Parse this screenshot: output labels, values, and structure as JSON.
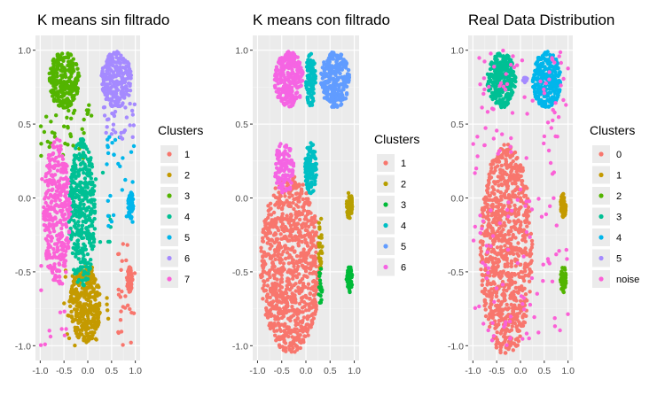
{
  "chart_data": [
    {
      "type": "scatter",
      "title": "K means sin filtrado",
      "xlabel": "",
      "ylabel": "",
      "xlim": [
        -1.1,
        1.1
      ],
      "ylim": [
        -1.1,
        1.1
      ],
      "x_ticks": [
        -1.0,
        -0.5,
        0.0,
        0.5,
        1.0
      ],
      "x_tick_labels": [
        "-1.0",
        "-0.5",
        "0.0",
        "0.5",
        "1.0"
      ],
      "y_ticks": [
        1.0,
        0.5,
        0.0,
        -0.5,
        -1.0
      ],
      "y_tick_labels": [
        "1.0",
        "0.5",
        "0.0",
        "-0.5",
        "-1.0"
      ],
      "grid": true,
      "legend_position": "right",
      "legend_title": "Clusters",
      "series": [
        {
          "name": "1",
          "color": "#F8766D",
          "blobs": [
            {
              "cx": 0.88,
              "cy": -0.55,
              "rx": 0.06,
              "ry": 0.09,
              "n": 60
            }
          ],
          "scatter": [
            {
              "x0": 0.6,
              "x1": 1.0,
              "y0": -1.0,
              "y1": -0.3,
              "n": 30
            }
          ]
        },
        {
          "name": "2",
          "color": "#C49A00",
          "blobs": [
            {
              "cx": -0.05,
              "cy": -0.72,
              "rx": 0.32,
              "ry": 0.26,
              "n": 320
            }
          ],
          "scatter": [
            {
              "x0": -0.5,
              "x1": 0.5,
              "y0": -1.0,
              "y1": -0.45,
              "n": 30
            }
          ]
        },
        {
          "name": "3",
          "color": "#53B400",
          "blobs": [
            {
              "cx": -0.5,
              "cy": 0.8,
              "rx": 0.32,
              "ry": 0.19,
              "n": 260
            }
          ],
          "scatter": [
            {
              "x0": -1.0,
              "x1": 0.1,
              "y0": 0.25,
              "y1": 0.65,
              "n": 40
            }
          ]
        },
        {
          "name": "4",
          "color": "#00C094",
          "blobs": [
            {
              "cx": -0.12,
              "cy": -0.1,
              "rx": 0.28,
              "ry": 0.5,
              "n": 360
            }
          ],
          "scatter": [
            {
              "x0": -0.4,
              "x1": 0.5,
              "y0": -0.3,
              "y1": 0.3,
              "n": 30
            }
          ]
        },
        {
          "name": "5",
          "color": "#00B6EB",
          "blobs": [
            {
              "cx": 0.9,
              "cy": -0.05,
              "rx": 0.06,
              "ry": 0.09,
              "n": 60
            }
          ],
          "scatter": [
            {
              "x0": 0.4,
              "x1": 1.0,
              "y0": -0.2,
              "y1": 0.45,
              "n": 30
            }
          ]
        },
        {
          "name": "6",
          "color": "#A58AFF",
          "blobs": [
            {
              "cx": 0.6,
              "cy": 0.8,
              "rx": 0.32,
              "ry": 0.19,
              "n": 260
            }
          ],
          "scatter": [
            {
              "x0": 0.3,
              "x1": 1.0,
              "y0": 0.4,
              "y1": 0.65,
              "n": 30
            }
          ]
        },
        {
          "name": "7",
          "color": "#FB61D7",
          "blobs": [
            {
              "cx": -0.65,
              "cy": -0.1,
              "rx": 0.28,
              "ry": 0.5,
              "n": 320
            }
          ],
          "scatter": [
            {
              "x0": -1.0,
              "x1": -0.4,
              "y0": -1.0,
              "y1": 0.3,
              "n": 30
            }
          ]
        }
      ]
    },
    {
      "type": "scatter",
      "title": "K means con filtrado",
      "xlabel": "",
      "ylabel": "",
      "xlim": [
        -1.1,
        1.1
      ],
      "ylim": [
        -1.1,
        1.1
      ],
      "x_ticks": [
        -1.0,
        -0.5,
        0.0,
        0.5,
        1.0
      ],
      "x_tick_labels": [
        "-1.0",
        "-0.5",
        "0.0",
        "0.5",
        "1.0"
      ],
      "y_ticks": [
        1.0,
        0.5,
        0.0,
        -0.5,
        -1.0
      ],
      "y_tick_labels": [
        "1.0",
        "0.5",
        "0.0",
        "-0.5",
        "-1.0"
      ],
      "grid": true,
      "legend_position": "right",
      "legend_title": "Clusters",
      "series": [
        {
          "name": "1",
          "color": "#F8766D",
          "blobs": [
            {
              "cx": -0.32,
              "cy": -0.45,
              "rx": 0.62,
              "ry": 0.6,
              "n": 900
            }
          ],
          "scatter": []
        },
        {
          "name": "2",
          "color": "#B79F00",
          "blobs": [
            {
              "cx": 0.9,
              "cy": -0.05,
              "rx": 0.06,
              "ry": 0.09,
              "n": 60
            },
            {
              "cx": 0.3,
              "cy": -0.3,
              "rx": 0.04,
              "ry": 0.2,
              "n": 30
            }
          ],
          "scatter": []
        },
        {
          "name": "3",
          "color": "#00BA38",
          "blobs": [
            {
              "cx": 0.9,
              "cy": -0.55,
              "rx": 0.06,
              "ry": 0.09,
              "n": 60
            },
            {
              "cx": 0.3,
              "cy": -0.6,
              "rx": 0.04,
              "ry": 0.15,
              "n": 20
            }
          ],
          "scatter": []
        },
        {
          "name": "4",
          "color": "#00BFC4",
          "blobs": [
            {
              "cx": 0.1,
              "cy": 0.8,
              "rx": 0.1,
              "ry": 0.18,
              "n": 120
            },
            {
              "cx": 0.1,
              "cy": 0.2,
              "rx": 0.12,
              "ry": 0.18,
              "n": 120
            }
          ],
          "scatter": []
        },
        {
          "name": "5",
          "color": "#619CFF",
          "blobs": [
            {
              "cx": 0.6,
              "cy": 0.8,
              "rx": 0.3,
              "ry": 0.19,
              "n": 260
            }
          ],
          "scatter": []
        },
        {
          "name": "6",
          "color": "#F564E3",
          "blobs": [
            {
              "cx": -0.35,
              "cy": 0.8,
              "rx": 0.3,
              "ry": 0.19,
              "n": 260
            },
            {
              "cx": -0.45,
              "cy": 0.2,
              "rx": 0.2,
              "ry": 0.18,
              "n": 120
            }
          ],
          "scatter": []
        }
      ]
    },
    {
      "type": "scatter",
      "title": "Real Data Distribution",
      "xlabel": "",
      "ylabel": "",
      "xlim": [
        -1.1,
        1.1
      ],
      "ylim": [
        -1.1,
        1.1
      ],
      "x_ticks": [
        -1.0,
        -0.5,
        0.0,
        0.5,
        1.0
      ],
      "x_tick_labels": [
        "-1.0",
        "-0.5",
        "0.0",
        "0.5",
        "1.0"
      ],
      "y_ticks": [
        1.0,
        0.5,
        0.0,
        -0.5,
        -1.0
      ],
      "y_tick_labels": [
        "1.0",
        "0.5",
        "0.0",
        "-0.5",
        "-1.0"
      ],
      "grid": true,
      "legend_position": "right",
      "legend_title": "Clusters",
      "series": [
        {
          "name": "0",
          "color": "#F8766D",
          "blobs": [
            {
              "cx": -0.3,
              "cy": -0.35,
              "rx": 0.55,
              "ry": 0.72,
              "n": 900
            }
          ],
          "scatter": []
        },
        {
          "name": "1",
          "color": "#C49A00",
          "blobs": [
            {
              "cx": 0.9,
              "cy": -0.05,
              "rx": 0.06,
              "ry": 0.09,
              "n": 60
            }
          ],
          "scatter": []
        },
        {
          "name": "2",
          "color": "#53B400",
          "blobs": [
            {
              "cx": 0.9,
              "cy": -0.55,
              "rx": 0.06,
              "ry": 0.09,
              "n": 60
            }
          ],
          "scatter": []
        },
        {
          "name": "3",
          "color": "#00C094",
          "blobs": [
            {
              "cx": -0.4,
              "cy": 0.8,
              "rx": 0.3,
              "ry": 0.19,
              "n": 260
            }
          ],
          "scatter": []
        },
        {
          "name": "4",
          "color": "#00B6EB",
          "blobs": [
            {
              "cx": 0.55,
              "cy": 0.8,
              "rx": 0.3,
              "ry": 0.19,
              "n": 260
            }
          ],
          "scatter": []
        },
        {
          "name": "5",
          "color": "#A58AFF",
          "blobs": [
            {
              "cx": 0.1,
              "cy": 0.8,
              "rx": 0.06,
              "ry": 0.02,
              "n": 10
            }
          ],
          "scatter": []
        },
        {
          "name": "noise",
          "color": "#FB61D7",
          "blobs": [],
          "scatter": [
            {
              "x0": -1.0,
              "x1": 1.0,
              "y0": -1.0,
              "y1": 1.0,
              "n": 160
            }
          ]
        }
      ]
    }
  ]
}
